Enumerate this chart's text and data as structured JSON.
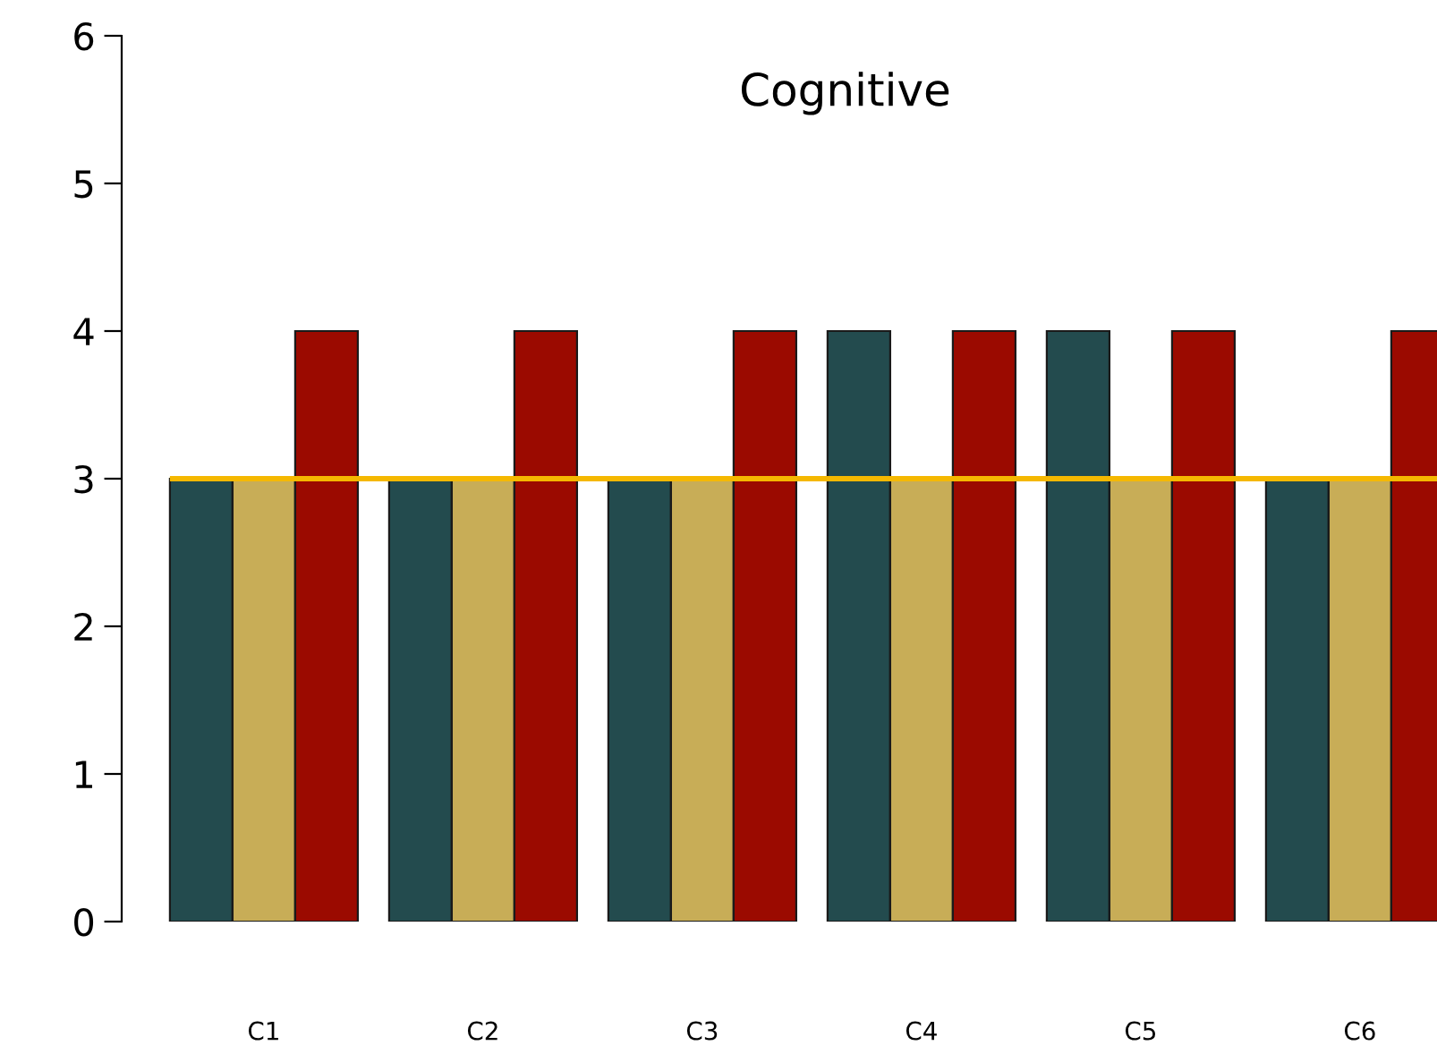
{
  "chart_data": {
    "type": "bar",
    "title": "Cognitive",
    "categories": [
      "C1",
      "C2",
      "C3",
      "C4",
      "C5",
      "C6"
    ],
    "series": [
      {
        "color": "#234b4e",
        "values": [
          3,
          3,
          3,
          4,
          4,
          3
        ]
      },
      {
        "color": "#c8ad57",
        "values": [
          3,
          3,
          3,
          3,
          3,
          3
        ]
      },
      {
        "color": "#9b0a00",
        "values": [
          4,
          4,
          4,
          4,
          4,
          4
        ]
      }
    ],
    "ylim": [
      0,
      6
    ],
    "yticks": [
      0,
      1,
      2,
      3,
      4,
      5,
      6
    ],
    "ref_lines": [
      {
        "axis": "y",
        "value": 3,
        "color": "#f5b800"
      }
    ],
    "grid": false,
    "legend": false
  }
}
